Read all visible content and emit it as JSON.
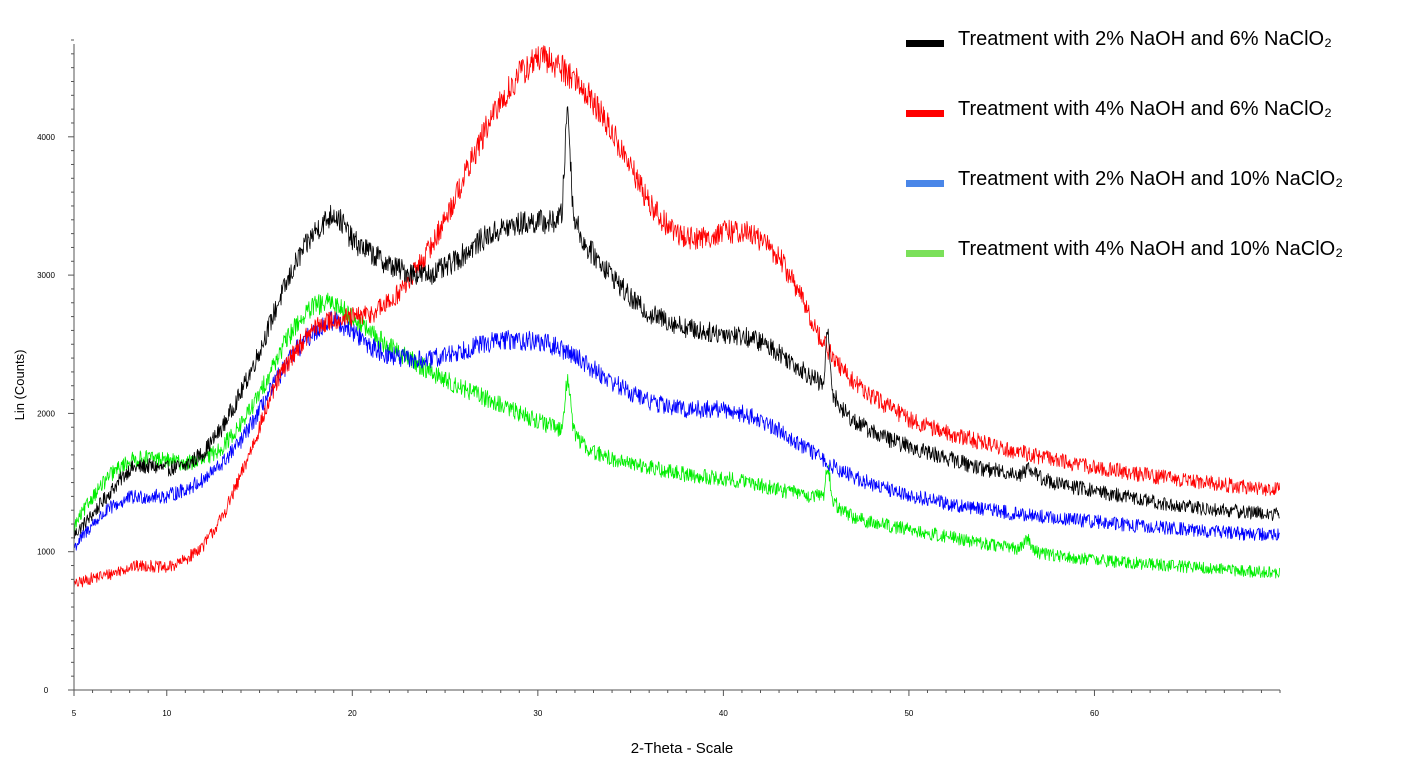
{
  "chart_data": {
    "type": "line",
    "title": "",
    "xlabel": "2-Theta - Scale",
    "ylabel": "Lin (Counts)",
    "xlim": [
      5,
      70
    ],
    "ylim": [
      0,
      4700
    ],
    "x_ticks": [
      5,
      10,
      20,
      30,
      40,
      50,
      60
    ],
    "x_tick_labels": [
      "5",
      "10",
      "20",
      "30",
      "40",
      "50",
      "60"
    ],
    "y_ticks": [
      0,
      1000,
      2000,
      3000,
      4000
    ],
    "y_tick_labels": [
      "0",
      "1000",
      "2000",
      "3000",
      "4000"
    ],
    "grid": false,
    "legend_position": "top-right",
    "series": [
      {
        "name": "Treatment with 2% NaOH and 6% NaClO₂",
        "color": "#000000",
        "x": [
          5,
          6,
          7,
          8,
          9,
          10,
          11,
          12,
          13,
          14,
          15,
          16,
          17,
          18,
          19,
          19.5,
          20,
          21,
          22,
          23,
          24,
          25,
          26,
          27,
          28,
          29,
          30,
          30.8,
          31.3,
          31.6,
          31.9,
          32.5,
          33,
          34,
          35,
          36,
          37,
          38,
          39,
          40,
          41,
          42,
          43,
          44,
          45,
          45.4,
          45.6,
          45.9,
          46.3,
          47,
          48,
          49,
          50,
          52,
          54,
          56,
          56.5,
          57,
          58,
          60,
          62,
          64,
          66,
          68,
          70
        ],
        "y": [
          1120,
          1270,
          1440,
          1600,
          1620,
          1600,
          1620,
          1720,
          1900,
          2150,
          2450,
          2800,
          3100,
          3320,
          3450,
          3370,
          3250,
          3160,
          3070,
          3020,
          3000,
          3050,
          3150,
          3260,
          3330,
          3370,
          3390,
          3380,
          3440,
          4270,
          3450,
          3220,
          3150,
          3000,
          2830,
          2720,
          2670,
          2620,
          2590,
          2580,
          2560,
          2520,
          2440,
          2340,
          2240,
          2200,
          2620,
          2150,
          2040,
          1950,
          1870,
          1810,
          1760,
          1680,
          1600,
          1560,
          1610,
          1540,
          1490,
          1440,
          1390,
          1340,
          1310,
          1290,
          1270
        ]
      },
      {
        "name": "Treatment with 4% NaOH and 6% NaClO₂",
        "color": "#ff0000",
        "x": [
          5,
          6,
          7,
          8,
          9,
          10,
          11,
          12,
          13,
          14,
          15,
          16,
          17,
          18,
          19,
          20,
          21,
          22,
          23,
          24,
          25,
          26,
          27,
          28,
          29,
          30,
          31,
          32,
          33,
          34,
          35,
          36,
          37,
          38,
          39,
          40,
          41,
          42,
          43,
          44,
          45,
          46,
          47,
          48,
          50,
          52,
          54,
          56,
          58,
          60,
          62,
          64,
          66,
          68,
          70
        ],
        "y": [
          760,
          810,
          840,
          890,
          900,
          880,
          940,
          1050,
          1250,
          1550,
          1900,
          2250,
          2470,
          2620,
          2680,
          2690,
          2720,
          2800,
          2950,
          3150,
          3400,
          3700,
          4000,
          4250,
          4450,
          4570,
          4530,
          4420,
          4250,
          4030,
          3780,
          3520,
          3350,
          3270,
          3270,
          3310,
          3320,
          3260,
          3130,
          2900,
          2600,
          2380,
          2230,
          2120,
          1960,
          1860,
          1790,
          1720,
          1660,
          1610,
          1570,
          1530,
          1500,
          1470,
          1450
        ]
      },
      {
        "name": "Treatment with 2% NaOH and 10% NaClO₂",
        "color": "#0000ff",
        "x": [
          5,
          6,
          7,
          8,
          9,
          10,
          11,
          12,
          13,
          14,
          15,
          16,
          17,
          18,
          19,
          20,
          21,
          22,
          23,
          24,
          25,
          26,
          27,
          28,
          29,
          30,
          31,
          32,
          33,
          34,
          35,
          36,
          37,
          38,
          39,
          40,
          41,
          42,
          43,
          44,
          45,
          46,
          47,
          48,
          50,
          52,
          54,
          56,
          58,
          60,
          62,
          64,
          66,
          68,
          70
        ],
        "y": [
          1030,
          1200,
          1320,
          1390,
          1400,
          1400,
          1450,
          1520,
          1640,
          1800,
          2020,
          2260,
          2460,
          2600,
          2680,
          2600,
          2480,
          2420,
          2390,
          2380,
          2420,
          2460,
          2500,
          2530,
          2530,
          2520,
          2480,
          2420,
          2320,
          2230,
          2150,
          2090,
          2050,
          2030,
          2030,
          2030,
          2000,
          1950,
          1880,
          1790,
          1700,
          1610,
          1540,
          1490,
          1410,
          1350,
          1310,
          1270,
          1240,
          1220,
          1190,
          1170,
          1150,
          1130,
          1120
        ]
      },
      {
        "name": "Treatment with 4% NaOH and 10% NaClO₂",
        "color": "#00ee00",
        "x": [
          5,
          6,
          7,
          8,
          9,
          10,
          11,
          12,
          13,
          14,
          15,
          16,
          17,
          18,
          19,
          20,
          21,
          22,
          23,
          24,
          25,
          26,
          27,
          28,
          29,
          30,
          30.8,
          31.3,
          31.6,
          31.9,
          32.4,
          33,
          34,
          35,
          36,
          37,
          38,
          39,
          40,
          41,
          42,
          43,
          44,
          45,
          45.4,
          45.6,
          45.9,
          46.3,
          47,
          48,
          50,
          52,
          54,
          56,
          56.4,
          56.7,
          57,
          58,
          60,
          62,
          64,
          66,
          68,
          70
        ],
        "y": [
          1180,
          1400,
          1560,
          1660,
          1680,
          1660,
          1640,
          1660,
          1760,
          1920,
          2140,
          2420,
          2650,
          2780,
          2800,
          2700,
          2580,
          2480,
          2400,
          2320,
          2240,
          2180,
          2120,
          2060,
          2000,
          1950,
          1900,
          1880,
          2300,
          1880,
          1780,
          1720,
          1670,
          1640,
          1610,
          1580,
          1560,
          1540,
          1530,
          1510,
          1480,
          1450,
          1420,
          1400,
          1400,
          1640,
          1380,
          1300,
          1250,
          1210,
          1160,
          1110,
          1060,
          1020,
          1100,
          1020,
          990,
          970,
          940,
          920,
          900,
          880,
          860,
          850
        ]
      }
    ]
  }
}
